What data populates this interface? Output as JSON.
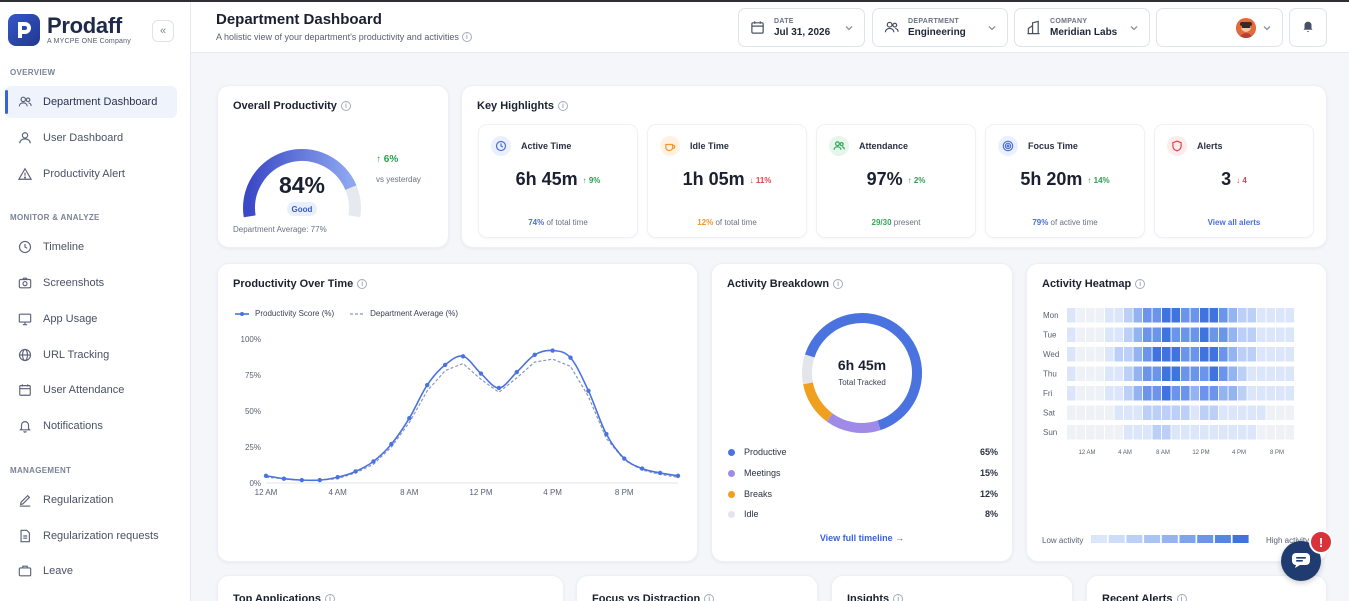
{
  "brand": {
    "name": "Prodaff",
    "tagline": "A MYCPE ONE Company"
  },
  "sidebar": {
    "collapse_icon": "chevrons-left-icon",
    "sections": {
      "overview": "OVERVIEW",
      "monitor": "MONITOR & ANALYZE",
      "management": "MANAGEMENT"
    },
    "items": [
      {
        "label": "Department Dashboard",
        "icon": "users-icon"
      },
      {
        "label": "User Dashboard",
        "icon": "user-icon"
      },
      {
        "label": "Productivity Alert",
        "icon": "warning-icon"
      },
      {
        "label": "Timeline",
        "icon": "clock-icon"
      },
      {
        "label": "Screenshots",
        "icon": "camera-icon"
      },
      {
        "label": "App Usage",
        "icon": "monitor-icon"
      },
      {
        "label": "URL Tracking",
        "icon": "globe-icon"
      },
      {
        "label": "User Attendance",
        "icon": "calendar-icon"
      },
      {
        "label": "Notifications",
        "icon": "bell-icon"
      },
      {
        "label": "Regularization",
        "icon": "pencil-icon"
      },
      {
        "label": "Regularization requests",
        "icon": "document-icon"
      },
      {
        "label": "Leave",
        "icon": "suitcase-icon"
      }
    ]
  },
  "header": {
    "title": "Department Dashboard",
    "subtitle": "A holistic view of your department's productivity and activities",
    "date": {
      "label": "DATE",
      "value": "Jul 31, 2026"
    },
    "department": {
      "label": "DEPARTMENT",
      "value": "Engineering"
    },
    "company": {
      "label": "COMPANY",
      "value": "Meridian Labs"
    }
  },
  "overall": {
    "title": "Overall Productivity",
    "value": "84%",
    "value_fraction": 0.84,
    "status": "Good",
    "delta": "↑ 6%",
    "delta_caption": "vs yesterday",
    "department_average": "Department Average: 77%"
  },
  "highlights": {
    "title": "Key Highlights",
    "items": [
      {
        "label": "Active Time",
        "value": "6h 45m",
        "delta": "↑ 9%",
        "foot_strong": "74%",
        "foot_rest": " of total time",
        "color": "#4a6fd8",
        "icon": "clock-icon"
      },
      {
        "label": "Idle Time",
        "value": "1h 05m",
        "delta": "↓ 11%",
        "foot_strong": "12%",
        "foot_rest": " of total time",
        "color": "#f0962b",
        "icon": "coffee-icon"
      },
      {
        "label": "Attendance",
        "value": "97%",
        "delta": "↑ 2%",
        "foot_strong": "29/30",
        "foot_rest": " present",
        "color": "#36a85a",
        "icon": "users-icon"
      },
      {
        "label": "Focus Time",
        "value": "5h 20m",
        "delta": "↑ 14%",
        "foot_strong": "79%",
        "foot_rest": " of active time",
        "color": "#4a6fd8",
        "icon": "target-icon"
      },
      {
        "label": "Alerts",
        "value": "3",
        "delta": "↓ 4",
        "foot_strong": "View all alerts",
        "foot_rest": "",
        "color": "#e0464d",
        "icon": "shield-icon"
      }
    ]
  },
  "productivity_chart": {
    "title": "Productivity Over Time",
    "legend": [
      "Productivity Score (%)",
      "Department Average (%)"
    ]
  },
  "chart_data": {
    "type": "line",
    "x": [
      0,
      1,
      2,
      3,
      4,
      5,
      6,
      7,
      8,
      9,
      10,
      11,
      12,
      13,
      14,
      15,
      16,
      17,
      18,
      19,
      20,
      21,
      22,
      23
    ],
    "x_ticks": [
      "12 AM",
      "4 AM",
      "8 AM",
      "12 PM",
      "4 PM",
      "8 PM"
    ],
    "y_ticks": [
      "0%",
      "25%",
      "50%",
      "75%",
      "100%"
    ],
    "ylim": [
      0,
      100
    ],
    "series": [
      {
        "name": "Productivity Score (%)",
        "values": [
          5,
          3,
          2,
          2,
          4,
          8,
          15,
          27,
          45,
          68,
          82,
          88,
          76,
          66,
          77,
          89,
          92,
          87,
          64,
          34,
          17,
          10,
          7,
          5
        ],
        "color": "#4a73e0"
      },
      {
        "name": "Department Average (%)",
        "values": [
          4,
          3,
          2,
          2,
          3,
          7,
          13,
          25,
          42,
          64,
          78,
          83,
          72,
          63,
          73,
          84,
          86,
          81,
          60,
          31,
          16,
          9,
          6,
          4
        ],
        "color": "#8a96b8"
      }
    ]
  },
  "activity_breakdown": {
    "title": "Activity Breakdown",
    "center_value": "6h 45m",
    "center_label": "Total Tracked",
    "items": [
      {
        "label": "Productive",
        "pct": "65%",
        "value": 65,
        "color": "#4a73e0"
      },
      {
        "label": "Meetings",
        "pct": "15%",
        "value": 15,
        "color": "#9f8ae8"
      },
      {
        "label": "Breaks",
        "pct": "12%",
        "value": 12,
        "color": "#f0a020"
      },
      {
        "label": "Idle",
        "pct": "8%",
        "value": 8,
        "color": "#e3e5ea"
      }
    ],
    "link": "View full timeline →"
  },
  "heatmap": {
    "title": "Activity Heatmap",
    "days": [
      "Mon",
      "Tue",
      "Wed",
      "Thu",
      "Fri",
      "Sat",
      "Sun"
    ],
    "hour_labels": [
      "12 AM",
      "4 AM",
      "8 AM",
      "12 PM",
      "4 PM",
      "8 PM"
    ],
    "levels": [
      [
        1,
        0,
        0,
        0,
        1,
        1,
        2,
        3,
        4,
        4,
        5,
        5,
        4,
        4,
        5,
        5,
        4,
        3,
        2,
        2,
        1,
        1,
        1,
        1
      ],
      [
        1,
        0,
        0,
        0,
        1,
        1,
        2,
        3,
        4,
        4,
        5,
        4,
        4,
        4,
        5,
        4,
        4,
        3,
        2,
        2,
        1,
        1,
        1,
        1
      ],
      [
        1,
        0,
        0,
        0,
        1,
        2,
        2,
        3,
        4,
        5,
        5,
        5,
        4,
        4,
        5,
        5,
        4,
        3,
        2,
        2,
        1,
        1,
        1,
        1
      ],
      [
        1,
        0,
        0,
        0,
        1,
        1,
        2,
        3,
        4,
        4,
        5,
        5,
        4,
        4,
        4,
        5,
        4,
        3,
        2,
        1,
        1,
        1,
        1,
        1
      ],
      [
        1,
        0,
        0,
        0,
        1,
        1,
        2,
        3,
        4,
        4,
        5,
        4,
        4,
        3,
        4,
        4,
        3,
        3,
        2,
        1,
        1,
        1,
        1,
        1
      ],
      [
        0,
        0,
        0,
        0,
        0,
        1,
        1,
        1,
        2,
        2,
        2,
        2,
        2,
        1,
        2,
        2,
        1,
        1,
        1,
        1,
        1,
        0,
        0,
        0
      ],
      [
        0,
        0,
        0,
        0,
        0,
        0,
        1,
        1,
        1,
        2,
        2,
        1,
        1,
        1,
        1,
        1,
        1,
        1,
        1,
        1,
        0,
        0,
        0,
        0
      ]
    ],
    "legend_low": "Low activity",
    "legend_high": "High activity"
  },
  "bottom_cards": [
    "Top Applications",
    "Focus vs Distraction",
    "Insights",
    "Recent Alerts"
  ]
}
